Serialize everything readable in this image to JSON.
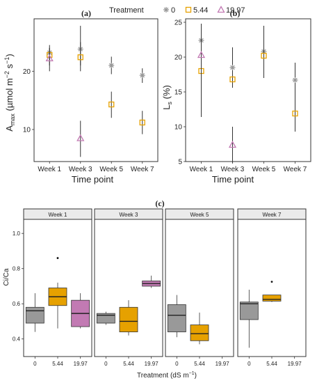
{
  "colors": {
    "t0": "#999999",
    "t544": "#E6A100",
    "t1997": "#C27AB3"
  },
  "legend": {
    "title": "Treatment",
    "items": [
      {
        "label": "0",
        "symbol": "asterisk",
        "color": "#999999"
      },
      {
        "label": "5.44",
        "symbol": "square",
        "color": "#E6A100"
      },
      {
        "label": "19.97",
        "symbol": "triangle",
        "color": "#C27AB3"
      }
    ]
  },
  "chart_data": [
    {
      "type": "scatter",
      "panel_label": "(a)",
      "categories": [
        "Week 1",
        "Week 3",
        "Week 5",
        "Week 7"
      ],
      "xlabel": "Time point",
      "ylabel_parts": {
        "main": "A",
        "sub": "max",
        "unit_open": " (µmol m",
        "exp1": "−2",
        "mid": " s",
        "exp2": "−1",
        "close": ")"
      },
      "ylim": [
        4.5,
        29
      ],
      "yticks": [
        10,
        20
      ],
      "series": [
        {
          "name": "0",
          "color": "#999999",
          "marker": "asterisk",
          "values": [
            [
              1,
              23.2,
              22,
              24.5
            ],
            [
              3,
              23.8,
              21,
              27.8
            ],
            [
              5,
              21.0,
              19.5,
              22.5
            ],
            [
              7,
              19.3,
              18,
              20.5
            ]
          ]
        },
        {
          "name": "5.44",
          "color": "#E6A100",
          "marker": "square",
          "values": [
            [
              1,
              22.8,
              21,
              24
            ],
            [
              3,
              22.4,
              20,
              25
            ],
            [
              5,
              14.3,
              12,
              16.5
            ],
            [
              7,
              11.2,
              9.2,
              13.2
            ]
          ]
        },
        {
          "name": "19.97",
          "color": "#C27AB3",
          "marker": "triangle",
          "values": [
            [
              1,
              22.2,
              20,
              24
            ],
            [
              3,
              8.5,
              5.3,
              11.5
            ],
            [
              5,
              null,
              null,
              null
            ],
            [
              7,
              null,
              null,
              null
            ]
          ]
        }
      ]
    },
    {
      "type": "scatter",
      "panel_label": "(b)",
      "categories": [
        "Week 1",
        "Week 3",
        "Week 5",
        "Week 7"
      ],
      "xlabel": "Time point",
      "ylabel_parts": {
        "main": "L",
        "sub": "s",
        "close": " (%)"
      },
      "ylim": [
        5,
        25.5
      ],
      "yticks": [
        5,
        10,
        15,
        20,
        25
      ],
      "series": [
        {
          "name": "0",
          "color": "#999999",
          "marker": "asterisk",
          "values": [
            [
              1,
              22.4,
              20,
              24.8
            ],
            [
              3,
              18.5,
              15.8,
              21.4
            ],
            [
              5,
              20.8,
              17,
              24.5
            ],
            [
              7,
              16.7,
              14.3,
              19.2
            ]
          ]
        },
        {
          "name": "5.44",
          "color": "#E6A100",
          "marker": "square",
          "values": [
            [
              1,
              18.0,
              11.4,
              24.7
            ],
            [
              3,
              16.8,
              15.6,
              18.0
            ],
            [
              5,
              20.2,
              17.2,
              23.2
            ],
            [
              7,
              11.9,
              9.3,
              14.5
            ]
          ]
        },
        {
          "name": "19.97",
          "color": "#C27AB3",
          "marker": "triangle",
          "values": [
            [
              1,
              20.3,
              16,
              24.6
            ],
            [
              3,
              7.4,
              4.8,
              10
            ],
            [
              5,
              null,
              null,
              null
            ],
            [
              7,
              null,
              null,
              null
            ]
          ]
        }
      ]
    },
    {
      "type": "box",
      "panel_label": "(c)",
      "ylabel": "Ci/Ca",
      "xlabel_parts": {
        "main": "Treatment (dS m",
        "exp": "−1",
        "close": ")"
      },
      "ylim": [
        0.3,
        1.08
      ],
      "yticks": [
        0.4,
        0.6,
        0.8,
        1.0
      ],
      "treatments": [
        "0",
        "5.44",
        "19.97"
      ],
      "facets": [
        {
          "title": "Week 1",
          "boxes": [
            {
              "t": "0",
              "color": "#999999",
              "min": 0.44,
              "q1": 0.49,
              "med": 0.56,
              "q3": 0.58,
              "max": 0.66,
              "outliers": []
            },
            {
              "t": "5.44",
              "color": "#E6A100",
              "min": 0.46,
              "q1": 0.59,
              "med": 0.64,
              "q3": 0.69,
              "max": 0.72,
              "outliers": [
                0.86
              ]
            },
            {
              "t": "19.97",
              "color": "#C27AB3",
              "min": 0.46,
              "q1": 0.47,
              "med": 0.545,
              "q3": 0.62,
              "max": 0.66,
              "outliers": []
            }
          ]
        },
        {
          "title": "Week 3",
          "boxes": [
            {
              "t": "0",
              "color": "#999999",
              "min": 0.48,
              "q1": 0.49,
              "med": 0.535,
              "q3": 0.545,
              "max": 0.555,
              "outliers": []
            },
            {
              "t": "5.44",
              "color": "#E6A100",
              "min": 0.42,
              "q1": 0.44,
              "med": 0.5,
              "q3": 0.58,
              "max": 0.62,
              "outliers": []
            },
            {
              "t": "19.97",
              "color": "#C27AB3",
              "min": 0.69,
              "q1": 0.7,
              "med": 0.715,
              "q3": 0.73,
              "max": 0.76,
              "outliers": []
            }
          ]
        },
        {
          "title": "Week 5",
          "boxes": [
            {
              "t": "0",
              "color": "#999999",
              "min": 0.41,
              "q1": 0.44,
              "med": 0.535,
              "q3": 0.595,
              "max": 0.65,
              "outliers": []
            },
            {
              "t": "5.44",
              "color": "#E6A100",
              "min": 0.37,
              "q1": 0.39,
              "med": 0.43,
              "q3": 0.48,
              "max": 0.55,
              "outliers": []
            }
          ]
        },
        {
          "title": "Week 7",
          "boxes": [
            {
              "t": "0",
              "color": "#999999",
              "min": 0.35,
              "q1": 0.51,
              "med": 0.6,
              "q3": 0.61,
              "max": 0.68,
              "outliers": []
            },
            {
              "t": "5.44",
              "color": "#E6A100",
              "min": 0.61,
              "q1": 0.615,
              "med": 0.625,
              "q3": 0.65,
              "max": 0.65,
              "outliers": [
                0.725
              ]
            }
          ]
        }
      ]
    }
  ]
}
